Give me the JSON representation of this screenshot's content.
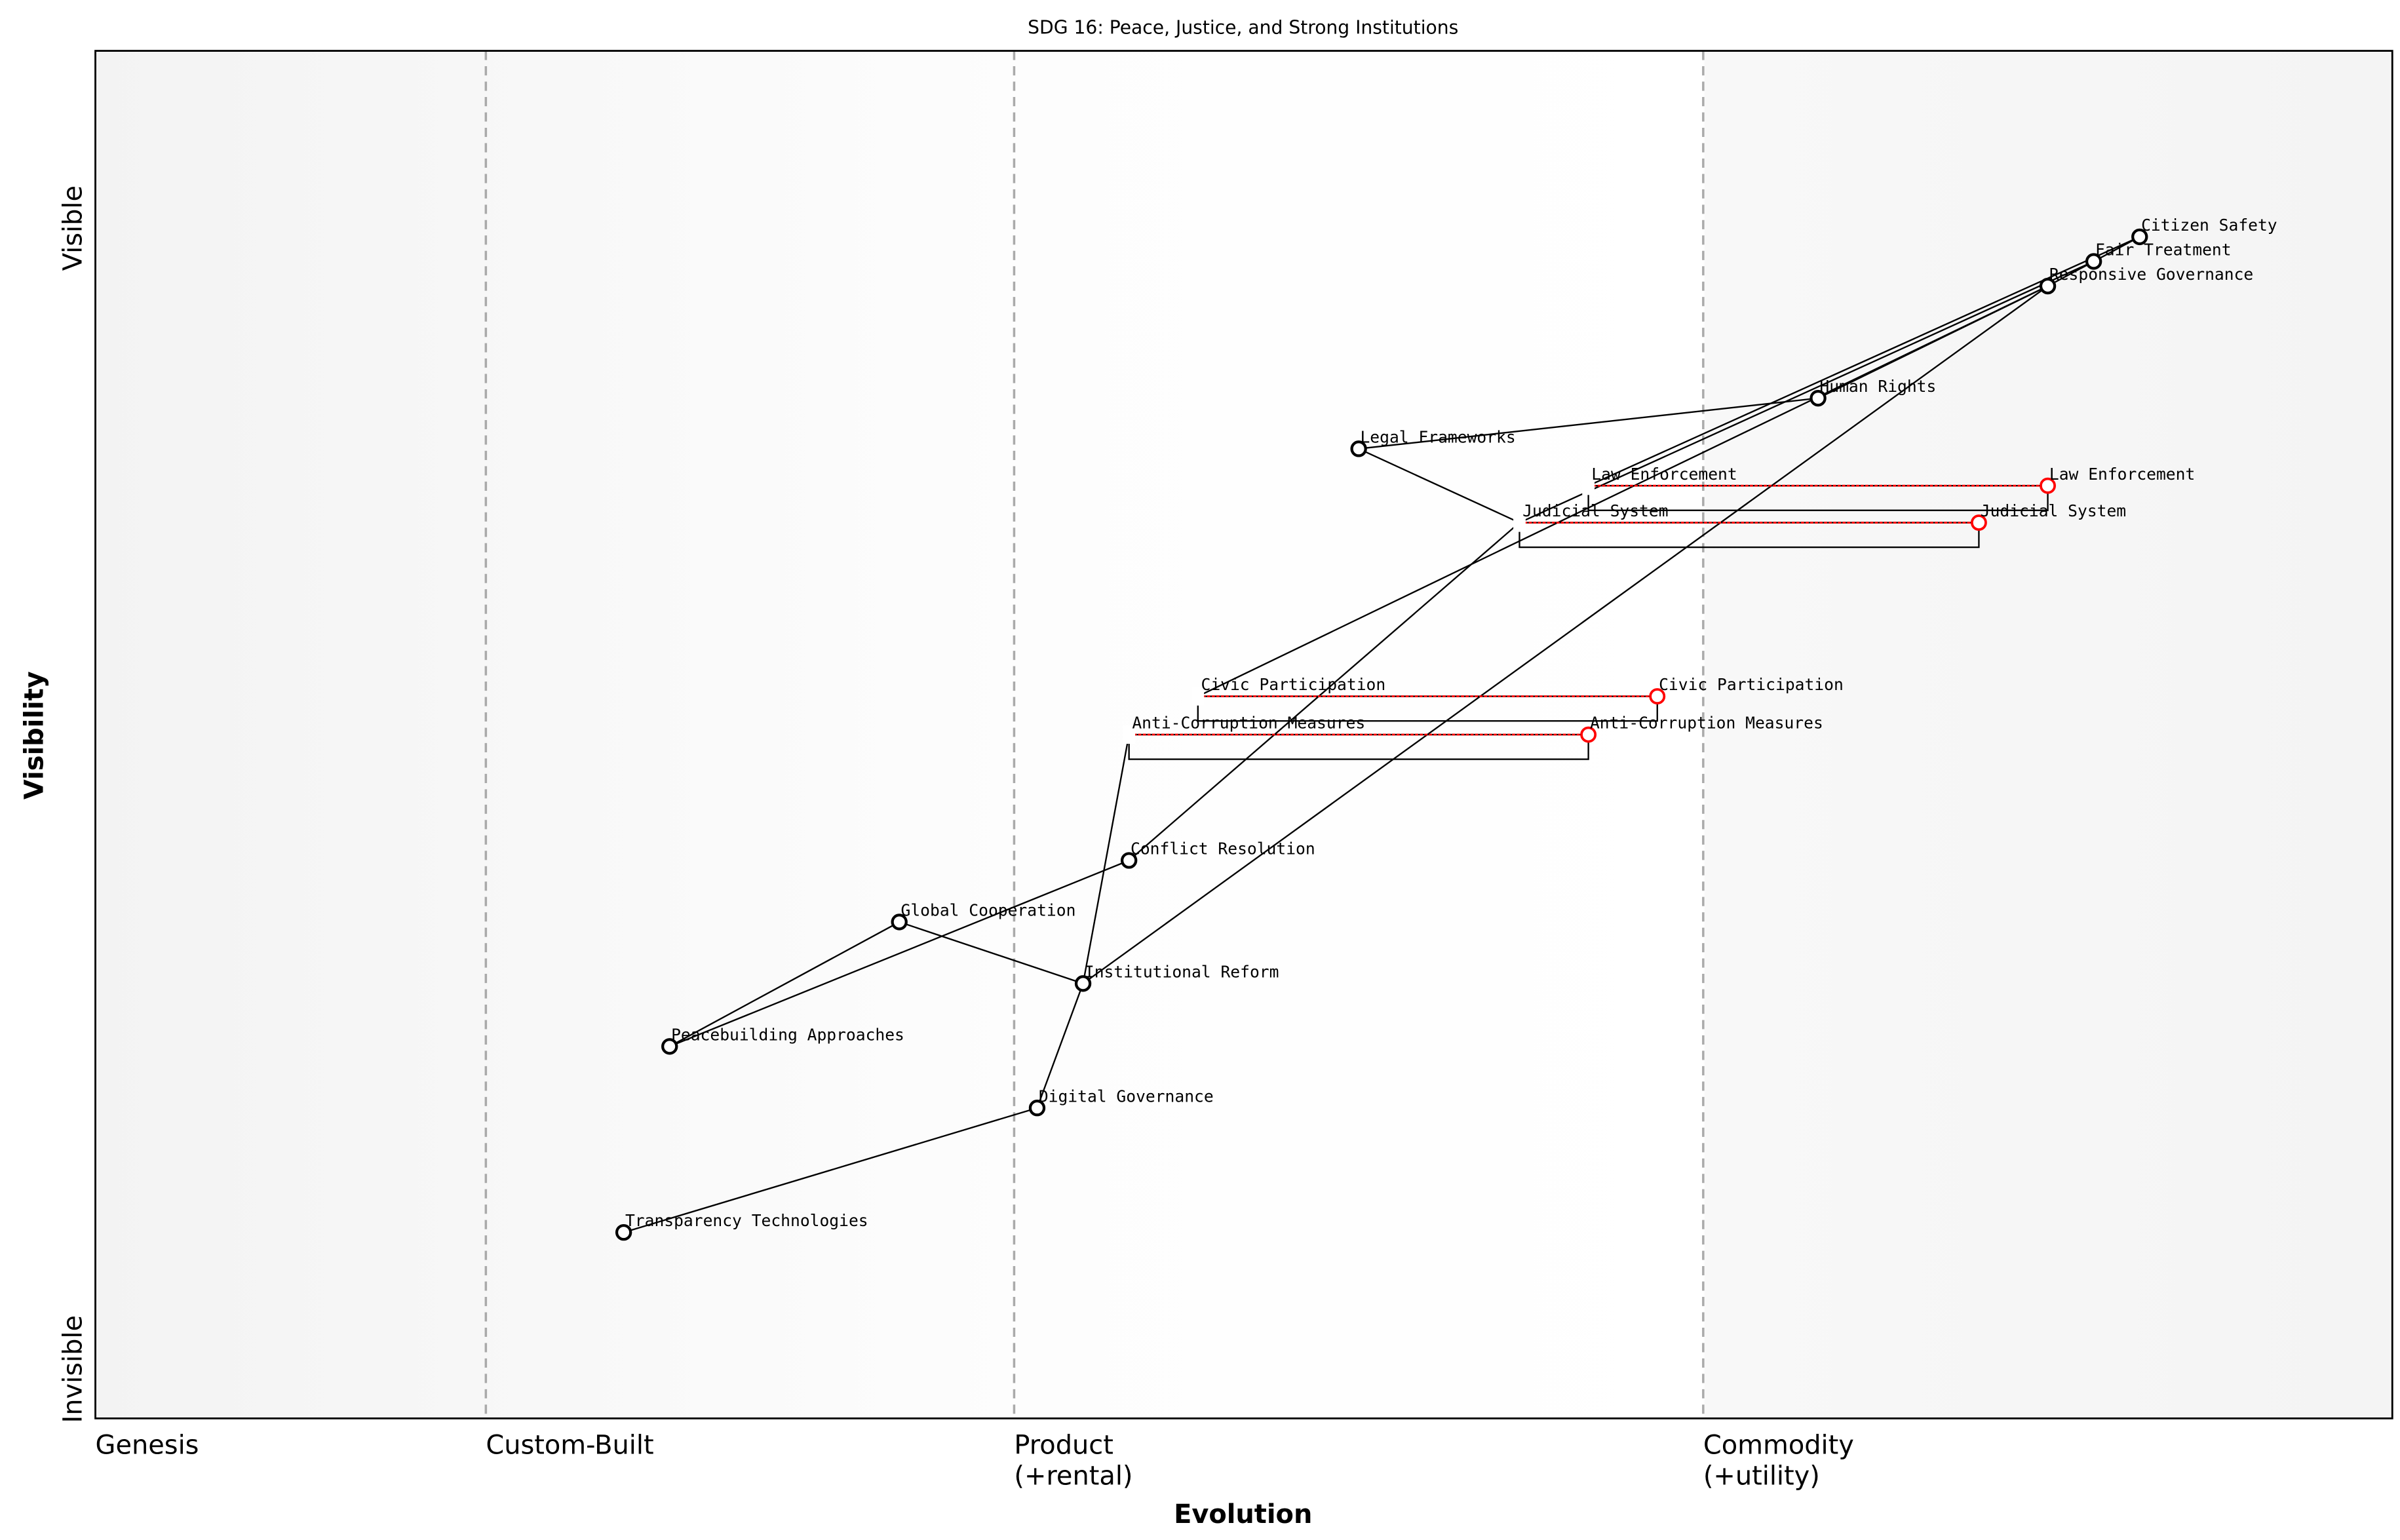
{
  "title": "SDG 16: Peace, Justice, and Strong Institutions",
  "x_axis": {
    "label": "Evolution",
    "stages": [
      {
        "label": "Genesis",
        "line2": "",
        "evolution": 0.0
      },
      {
        "label": "Custom-Built",
        "line2": "",
        "evolution": 0.17
      },
      {
        "label": "Product",
        "line2": "(+rental)",
        "evolution": 0.4
      },
      {
        "label": "Commodity",
        "line2": "(+utility)",
        "evolution": 0.7
      }
    ]
  },
  "y_axis": {
    "label": "Visibility",
    "top_label": "Visible",
    "bottom_label": "Invisible"
  },
  "colors": {
    "component": "#000000",
    "evolved": "#ff0000",
    "stage_line": "#aaaaaa"
  },
  "components": [
    {
      "id": "citizen_safety",
      "name": "Citizen Safety",
      "evolution": 0.89,
      "visibility": 0.864
    },
    {
      "id": "fair_treatment",
      "name": "Fair Treatment",
      "evolution": 0.87,
      "visibility": 0.846
    },
    {
      "id": "responsive_governance",
      "name": "Responsive Governance",
      "evolution": 0.85,
      "visibility": 0.828
    },
    {
      "id": "human_rights",
      "name": "Human Rights",
      "evolution": 0.75,
      "visibility": 0.746
    },
    {
      "id": "legal_frameworks",
      "name": "Legal Frameworks",
      "evolution": 0.55,
      "visibility": 0.709
    },
    {
      "id": "conflict_resolution",
      "name": "Conflict Resolution",
      "evolution": 0.45,
      "visibility": 0.408
    },
    {
      "id": "global_cooperation",
      "name": "Global Cooperation",
      "evolution": 0.35,
      "visibility": 0.363
    },
    {
      "id": "institutional_reform",
      "name": "Institutional Reform",
      "evolution": 0.43,
      "visibility": 0.318
    },
    {
      "id": "peacebuilding",
      "name": "Peacebuilding Approaches",
      "evolution": 0.25,
      "visibility": 0.272
    },
    {
      "id": "digital_governance",
      "name": "Digital Governance",
      "evolution": 0.41,
      "visibility": 0.227
    },
    {
      "id": "transparency_tech",
      "name": "Transparency Technologies",
      "evolution": 0.23,
      "visibility": 0.136
    }
  ],
  "evolving": [
    {
      "id": "law_enforcement",
      "name": "Law Enforcement",
      "from": 0.65,
      "to": 0.85,
      "visibility": 0.682
    },
    {
      "id": "judicial_system",
      "name": "Judicial System",
      "from": 0.62,
      "to": 0.82,
      "visibility": 0.655
    },
    {
      "id": "civic_participation",
      "name": "Civic Participation",
      "from": 0.48,
      "to": 0.68,
      "visibility": 0.528
    },
    {
      "id": "anti_corruption",
      "name": "Anti-Corruption Measures",
      "from": 0.45,
      "to": 0.65,
      "visibility": 0.5
    }
  ],
  "links": [
    [
      "citizen_safety",
      "fair_treatment"
    ],
    [
      "fair_treatment",
      "responsive_governance"
    ],
    [
      "citizen_safety",
      "law_enforcement"
    ],
    [
      "fair_treatment",
      "judicial_system"
    ],
    [
      "responsive_governance",
      "human_rights"
    ],
    [
      "human_rights",
      "legal_frameworks"
    ],
    [
      "legal_frameworks",
      "judicial_system"
    ],
    [
      "judicial_system",
      "conflict_resolution"
    ],
    [
      "responsive_governance",
      "institutional_reform"
    ],
    [
      "responsive_governance",
      "civic_participation"
    ],
    [
      "anti_corruption",
      "institutional_reform"
    ],
    [
      "conflict_resolution",
      "peacebuilding"
    ],
    [
      "peacebuilding",
      "global_cooperation"
    ],
    [
      "global_cooperation",
      "institutional_reform"
    ],
    [
      "institutional_reform",
      "digital_governance"
    ],
    [
      "digital_governance",
      "transparency_tech"
    ]
  ]
}
